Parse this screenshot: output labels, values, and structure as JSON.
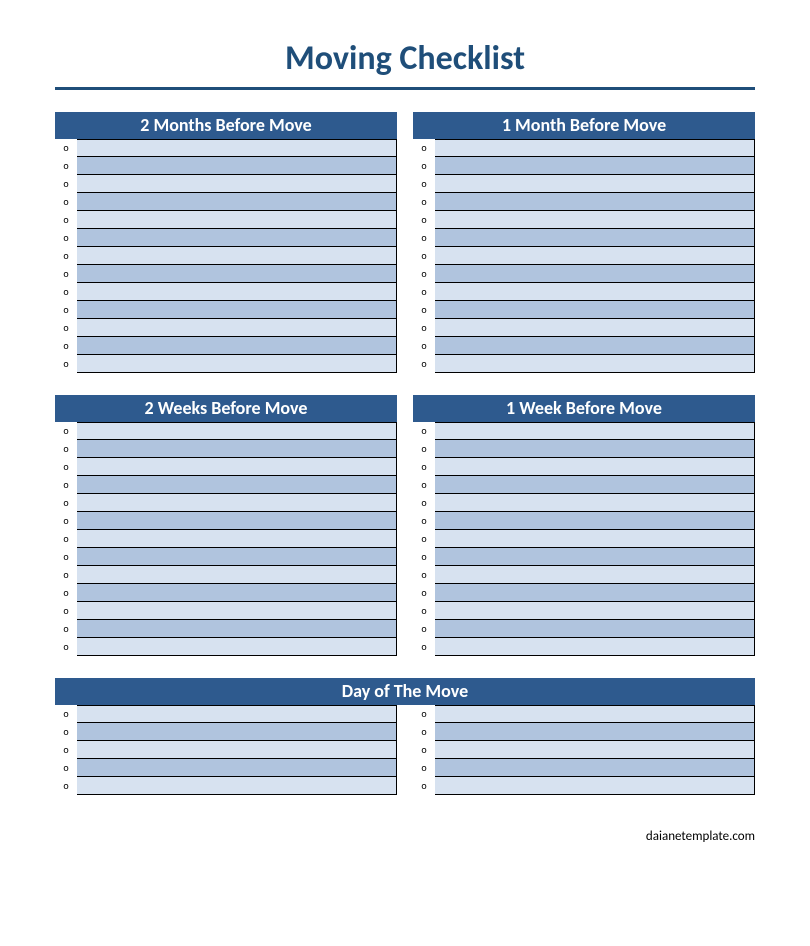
{
  "title": "Moving Checklist",
  "footer": "daianetemplate.com",
  "colors": {
    "title": "#1f4e79",
    "rule": "#1f4e79",
    "header_bg": "#2e5a8e",
    "header_fg": "#ffffff",
    "row_even_bg": "#d7e2f0",
    "row_odd_bg": "#b0c4de",
    "row_border": "#000000"
  },
  "bullet_char": "o",
  "sections": [
    {
      "title": "2 Months Before Move",
      "rows": 13,
      "layout": "half"
    },
    {
      "title": "1 Month Before Move",
      "rows": 13,
      "layout": "half"
    },
    {
      "title": "2 Weeks Before Move",
      "rows": 13,
      "layout": "half"
    },
    {
      "title": "1 Week Before Move",
      "rows": 13,
      "layout": "half"
    },
    {
      "title": "Day of The Move",
      "rows": 5,
      "layout": "wide"
    }
  ]
}
